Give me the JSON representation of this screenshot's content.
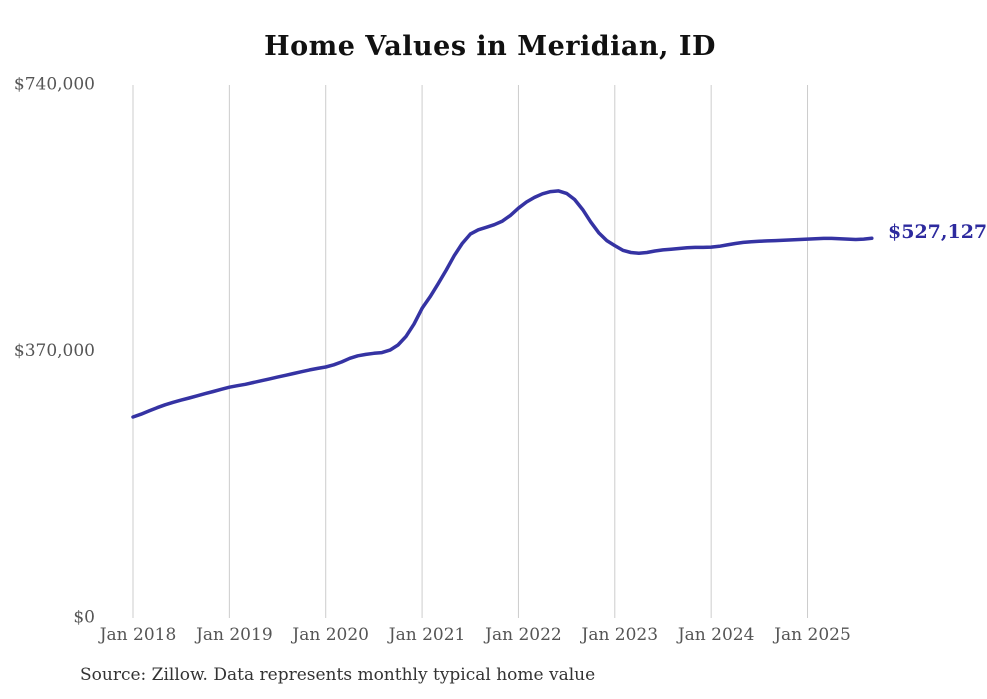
{
  "chart_data": {
    "type": "line",
    "title": "Home Values in Meridian, ID",
    "source": "Source: Zillow. Data represents monthly typical home value",
    "end_label": "$527,127",
    "series_name": "Monthly typical home value (USD)",
    "legend": "none",
    "grid": "vertical-only",
    "ylim": [
      0,
      740000
    ],
    "y_ticks": [
      {
        "value": 740000,
        "label": "$740,000"
      },
      {
        "value": 370000,
        "label": "$370,000"
      },
      {
        "value": 0,
        "label": "$0"
      }
    ],
    "x_ticks": [
      "Jan 2018",
      "Jan 2019",
      "Jan 2020",
      "Jan 2021",
      "Jan 2022",
      "Jan 2023",
      "Jan 2024",
      "Jan 2025"
    ],
    "x": [
      "2018-01",
      "2018-02",
      "2018-03",
      "2018-04",
      "2018-05",
      "2018-06",
      "2018-07",
      "2018-08",
      "2018-09",
      "2018-10",
      "2018-11",
      "2018-12",
      "2019-01",
      "2019-02",
      "2019-03",
      "2019-04",
      "2019-05",
      "2019-06",
      "2019-07",
      "2019-08",
      "2019-09",
      "2019-10",
      "2019-11",
      "2019-12",
      "2020-01",
      "2020-02",
      "2020-03",
      "2020-04",
      "2020-05",
      "2020-06",
      "2020-07",
      "2020-08",
      "2020-09",
      "2020-10",
      "2020-11",
      "2020-12",
      "2021-01",
      "2021-02",
      "2021-03",
      "2021-04",
      "2021-05",
      "2021-06",
      "2021-07",
      "2021-08",
      "2021-09",
      "2021-10",
      "2021-11",
      "2021-12",
      "2022-01",
      "2022-02",
      "2022-03",
      "2022-04",
      "2022-05",
      "2022-06",
      "2022-07",
      "2022-08",
      "2022-09",
      "2022-10",
      "2022-11",
      "2022-12",
      "2023-01",
      "2023-02",
      "2023-03",
      "2023-04",
      "2023-05",
      "2023-06",
      "2023-07",
      "2023-08",
      "2023-09",
      "2023-10",
      "2023-11",
      "2023-12",
      "2024-01",
      "2024-02",
      "2024-03",
      "2024-04",
      "2024-05",
      "2024-06",
      "2024-07",
      "2024-08",
      "2024-09",
      "2024-10",
      "2024-11",
      "2024-12",
      "2025-01",
      "2025-02",
      "2025-03",
      "2025-04",
      "2025-05",
      "2025-06",
      "2025-07",
      "2025-08",
      "2025-09"
    ],
    "values": [
      279000,
      283000,
      287500,
      292000,
      296000,
      299500,
      302500,
      305500,
      308500,
      311500,
      314500,
      317500,
      320500,
      322500,
      324500,
      327000,
      329500,
      332000,
      334500,
      337000,
      339500,
      342000,
      344500,
      346500,
      348500,
      351500,
      355500,
      360500,
      364000,
      366000,
      367500,
      368500,
      372000,
      379000,
      391000,
      408000,
      430000,
      446000,
      464000,
      483000,
      503000,
      520000,
      533000,
      539000,
      542500,
      546000,
      551000,
      559000,
      569000,
      577500,
      584000,
      589000,
      592000,
      593000,
      589500,
      581000,
      567000,
      550000,
      535000,
      524000,
      517000,
      510500,
      507500,
      506500,
      507500,
      509500,
      511000,
      512000,
      513000,
      514000,
      514500,
      514500,
      515000,
      516000,
      518000,
      520000,
      521500,
      522500,
      523000,
      523500,
      524000,
      524500,
      525000,
      525500,
      526000,
      526500,
      527000,
      527000,
      526500,
      526000,
      525500,
      526000,
      527127
    ],
    "colors": {
      "line": "#3533a3",
      "end_label": "#2d2a9e",
      "grid": "#cccccc",
      "axis_text": "#555555",
      "title": "#111111",
      "source_text": "#333333",
      "background": "#ffffff"
    }
  }
}
